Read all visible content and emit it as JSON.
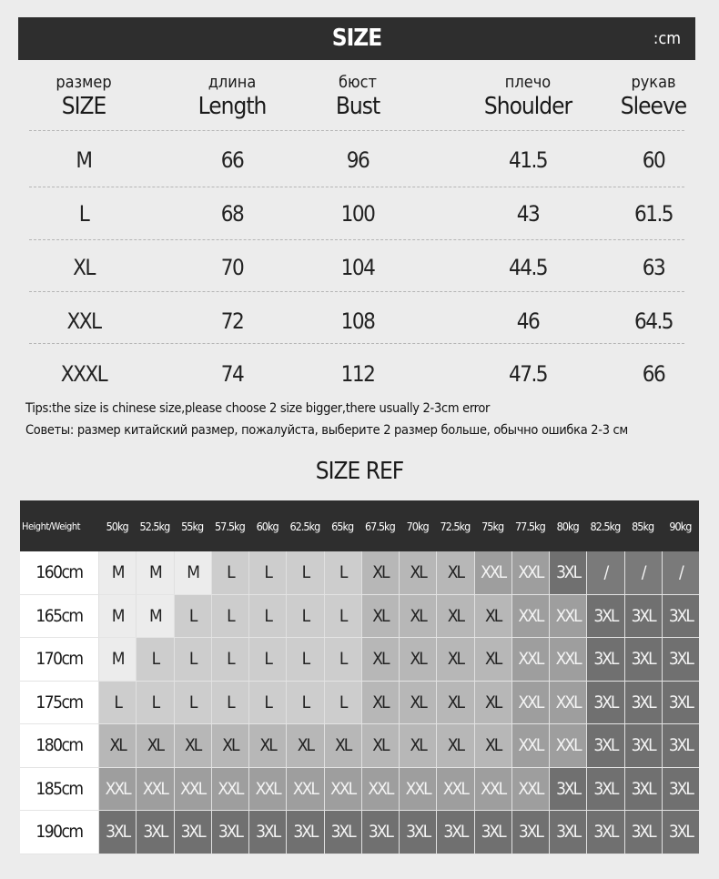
{
  "header": {
    "title": "SIZE",
    "unit": ":cm"
  },
  "columns": [
    {
      "ru": "размер",
      "en": "SIZE"
    },
    {
      "ru": "длина",
      "en": "Length"
    },
    {
      "ru": "бюст",
      "en": "Bust"
    },
    {
      "ru": "плечо",
      "en": "Shoulder"
    },
    {
      "ru": "рукав",
      "en": "Sleeve"
    }
  ],
  "rows": [
    [
      "M",
      "66",
      "96",
      "41.5",
      "60"
    ],
    [
      "L",
      "68",
      "100",
      "43",
      "61.5"
    ],
    [
      "XL",
      "70",
      "104",
      "44.5",
      "63"
    ],
    [
      "XXL",
      "72",
      "108",
      "46",
      "64.5"
    ],
    [
      "XXXL",
      "74",
      "112",
      "47.5",
      "66"
    ]
  ],
  "tips": {
    "en": "Tips:the size is chinese size,please choose 2 size bigger,there usually 2-3cm error",
    "ru": "Советы: размер китайский размер, пожалуйста, выберите 2 размер больше, обычно ошибка 2-3 см"
  },
  "size_ref": {
    "title": "SIZE REF",
    "corner": "Height/Weight",
    "weights": [
      "50kg",
      "52.5kg",
      "55kg",
      "57.5kg",
      "60kg",
      "62.5kg",
      "65kg",
      "67.5kg",
      "70kg",
      "72.5kg",
      "75kg",
      "77.5kg",
      "80kg",
      "82.5kg",
      "85kg",
      "90kg"
    ],
    "rows": [
      {
        "height": "160cm",
        "sizes": [
          "M",
          "M",
          "M",
          "L",
          "L",
          "L",
          "L",
          "XL",
          "XL",
          "XL",
          "XXL",
          "XXL",
          "3XL",
          "/",
          "/",
          "/"
        ]
      },
      {
        "height": "165cm",
        "sizes": [
          "M",
          "M",
          "L",
          "L",
          "L",
          "L",
          "L",
          "XL",
          "XL",
          "XL",
          "XL",
          "XXL",
          "XXL",
          "3XL",
          "3XL",
          "3XL"
        ]
      },
      {
        "height": "170cm",
        "sizes": [
          "M",
          "L",
          "L",
          "L",
          "L",
          "L",
          "L",
          "XL",
          "XL",
          "XL",
          "XL",
          "XXL",
          "XXL",
          "3XL",
          "3XL",
          "3XL"
        ]
      },
      {
        "height": "175cm",
        "sizes": [
          "L",
          "L",
          "L",
          "L",
          "L",
          "L",
          "L",
          "XL",
          "XL",
          "XL",
          "XL",
          "XXL",
          "XXL",
          "3XL",
          "3XL",
          "3XL"
        ]
      },
      {
        "height": "180cm",
        "sizes": [
          "XL",
          "XL",
          "XL",
          "XL",
          "XL",
          "XL",
          "XL",
          "XL",
          "XL",
          "XL",
          "XL",
          "XXL",
          "XXL",
          "3XL",
          "3XL",
          "3XL"
        ]
      },
      {
        "height": "185cm",
        "sizes": [
          "XXL",
          "XXL",
          "XXL",
          "XXL",
          "XXL",
          "XXL",
          "XXL",
          "XXL",
          "XXL",
          "XXL",
          "XXL",
          "XXL",
          "3XL",
          "3XL",
          "3XL",
          "3XL"
        ]
      },
      {
        "height": "190cm",
        "sizes": [
          "3XL",
          "3XL",
          "3XL",
          "3XL",
          "3XL",
          "3XL",
          "3XL",
          "3XL",
          "3XL",
          "3XL",
          "3XL",
          "3XL",
          "3XL",
          "3XL",
          "3XL",
          "3XL"
        ]
      }
    ],
    "colors": {
      "M": "#ececec",
      "L": "#cdcdcd",
      "XL": "#b7b7b7",
      "XXL": "#9e9e9e",
      "3XL": "#707070",
      "/": "#7a7a7a"
    }
  }
}
